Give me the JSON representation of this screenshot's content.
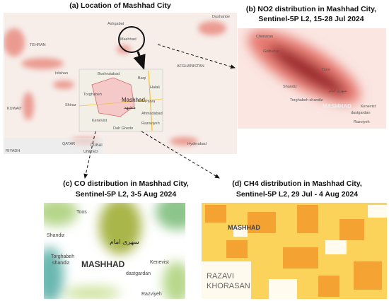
{
  "panels": [
    {
      "title": [
        "(a) Location of Mashhad City"
      ],
      "labels": [
        "Ashgabat",
        "Dushanbe",
        "TEHRAN",
        "Mashhad",
        "AFGHANISTAN",
        "Isfahan",
        "Shiraz",
        "KUWAIT",
        "QATAR",
        "RIYADH",
        "DUBAI",
        "UNITED",
        "Hyderabad"
      ],
      "inset": [
        "Boshrutabad",
        "Baqi",
        "Torghabeh",
        "Mashhad",
        "مشهد",
        "Parva",
        "Halali",
        "Kenevist",
        "Ahmadabad",
        "Razaviyeh",
        "Dah Ghedo"
      ]
    },
    {
      "title": [
        "(b) NO2 distribution in Mashhad City,",
        "Sentinel-5P L2, 15-28 Jul 2024"
      ],
      "labels": [
        "Chenaran",
        "Golbahar",
        "Toos",
        "Shandiz",
        "سهری امام",
        "Torghabeh shandiz",
        "MASHHAD",
        "Kenevist",
        "dastgardan",
        "Razviyeh"
      ]
    },
    {
      "title": [
        "(c) CO distribution in Mashhad City,",
        "Sentinel-5P L2, 3-5 Aug 2024"
      ],
      "labels": [
        "Toos",
        "Shandiz",
        "سهری امام",
        "Torghabeh",
        "shandiz",
        "MASHHAD",
        "Kenevist",
        "dastgardan",
        "Razviyeh"
      ]
    },
    {
      "title": [
        "(d) CH4 distribution in Mashhad City,",
        "Sentinel-5P L2, 29 Jul - 4 Aug 2024"
      ],
      "labels": [
        "MASHHAD",
        "RAZAVI",
        "KHORASAN"
      ]
    }
  ]
}
